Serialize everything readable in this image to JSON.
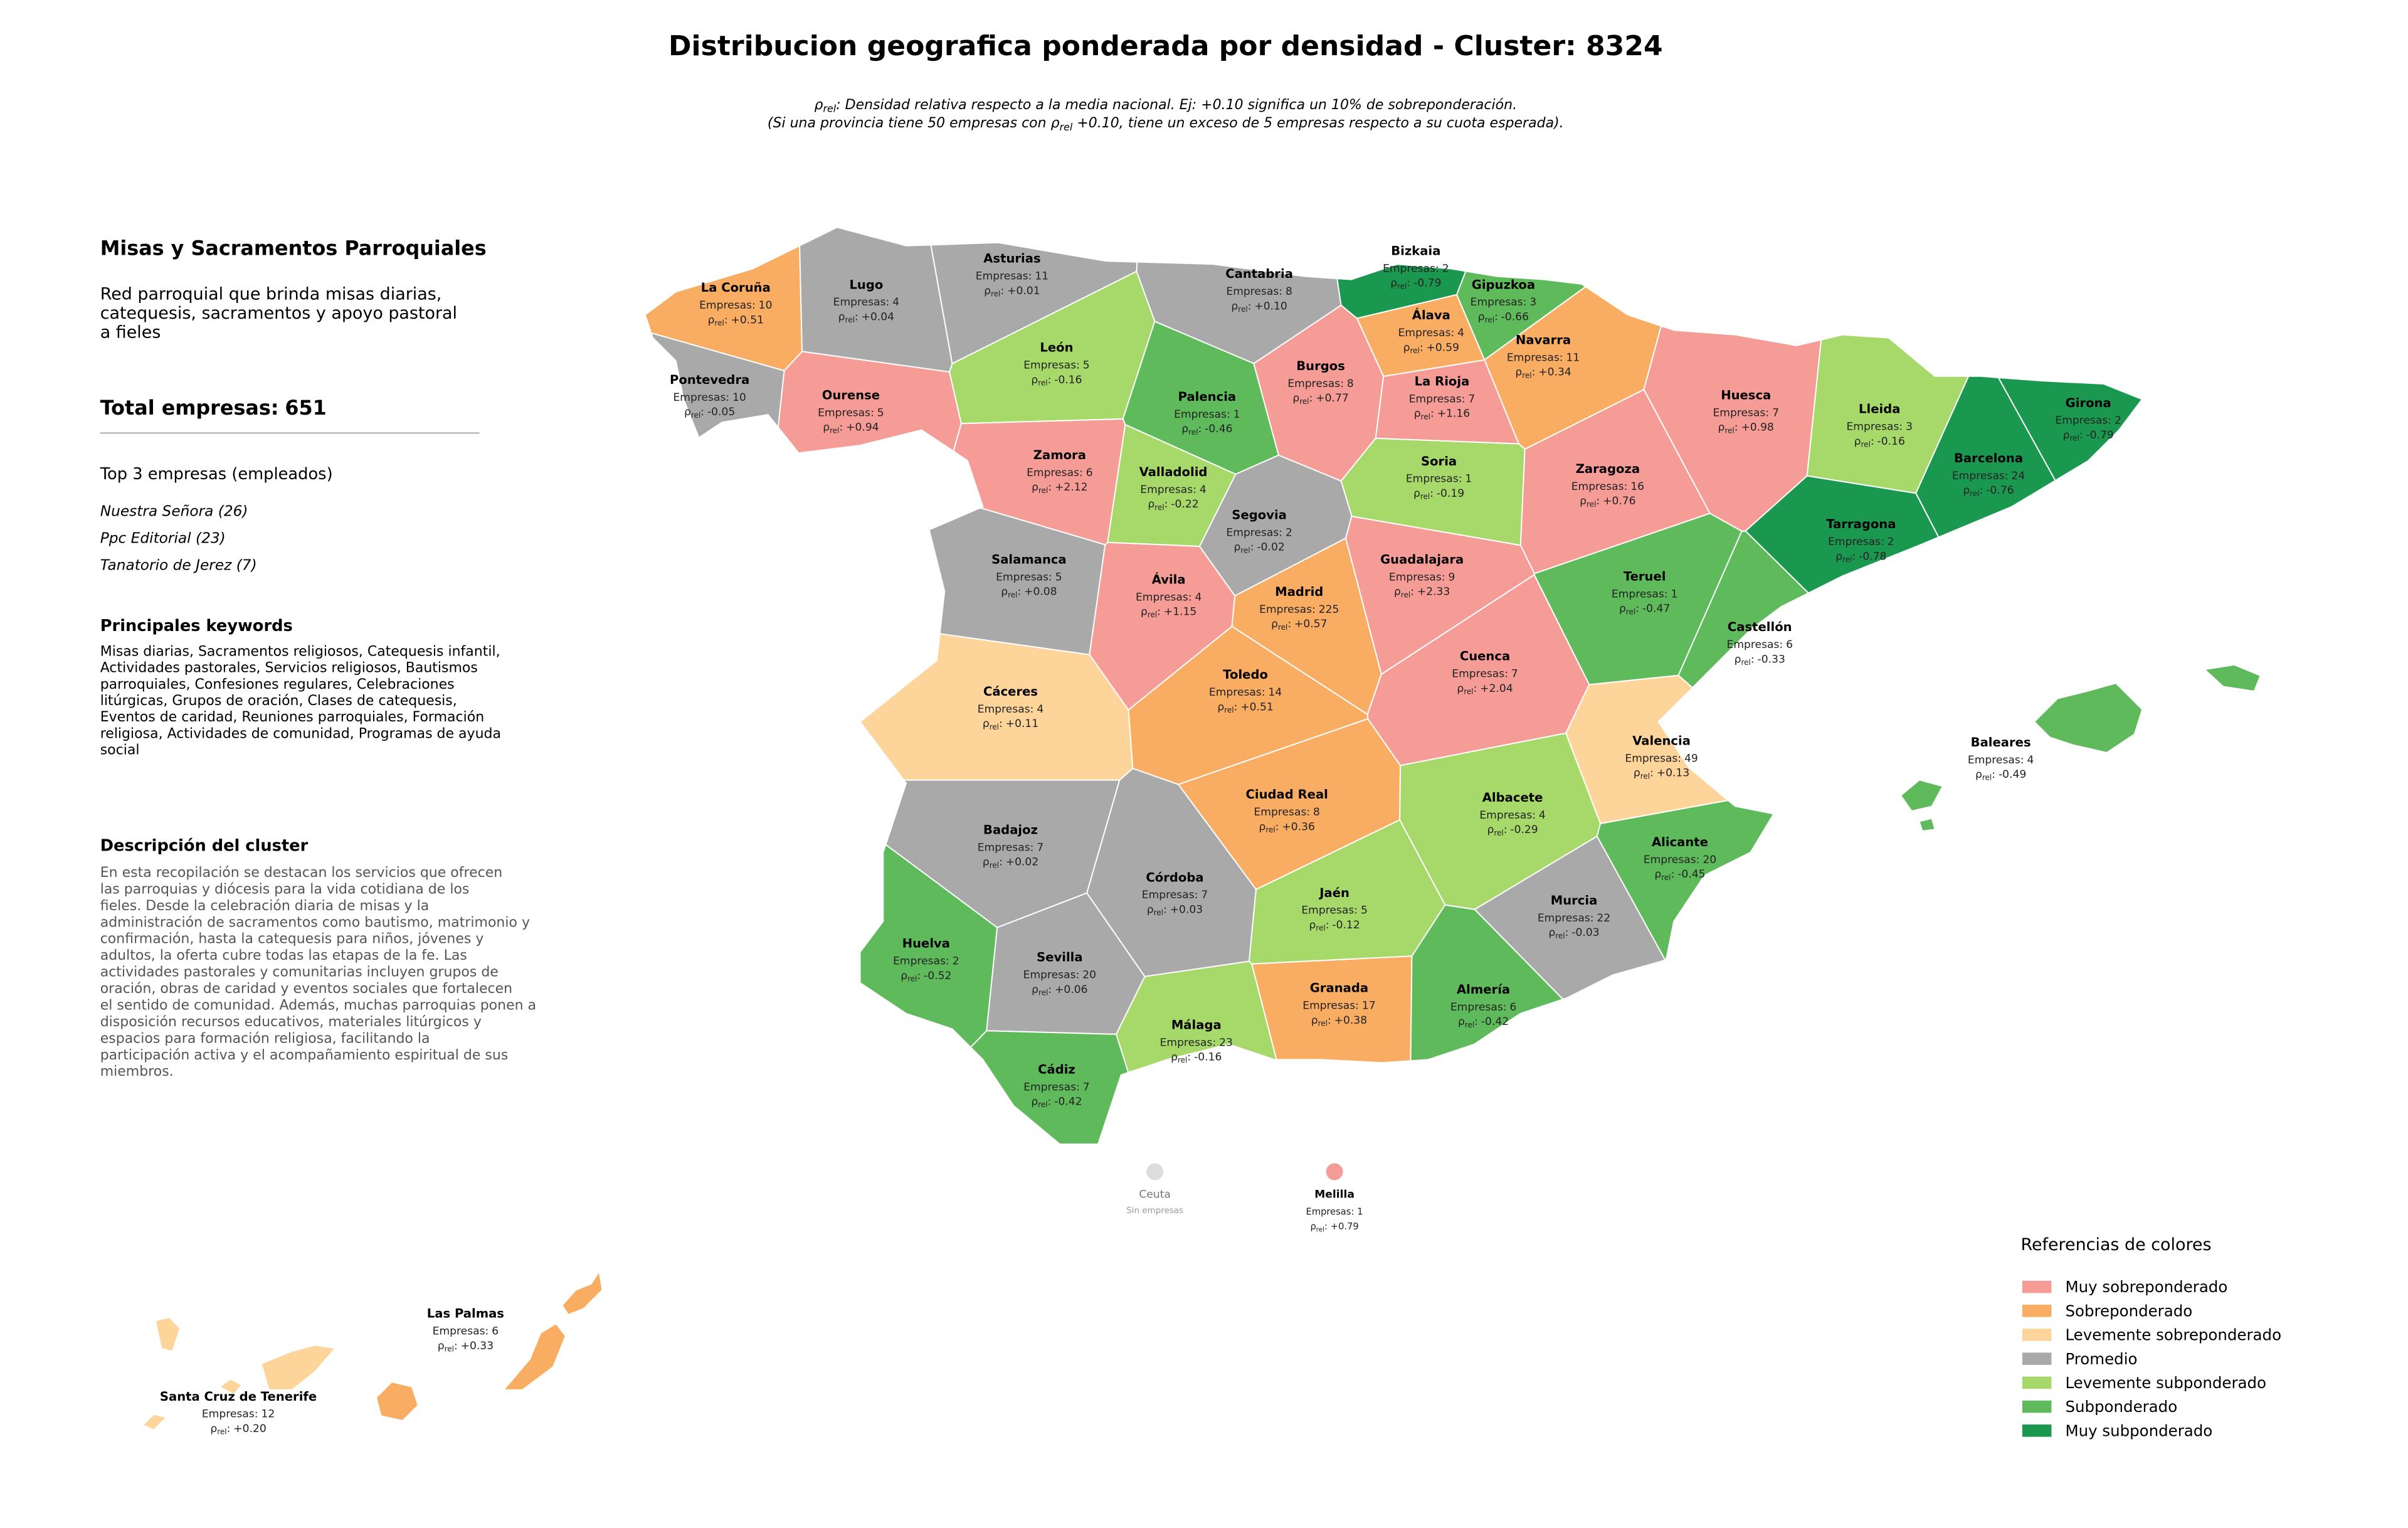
{
  "header": {
    "title": "Distribucion geografica ponderada por densidad - Cluster: 8324",
    "subtitle": [
      [
        {
          "text": "ρ"
        },
        {
          "text": "rel",
          "subscript": true
        },
        {
          "text": ": Densidad relativa respecto a la media nacional. Ej: +0.10 significa un 10% de sobreponderación."
        }
      ],
      [
        {
          "text": "(Si una provincia tiene 50 empresas con "
        },
        {
          "text": "ρ"
        },
        {
          "text": "rel",
          "subscript": true
        },
        {
          "text": " +0.10, tiene un exceso de 5 empresas respecto a su cuota esperada)."
        }
      ]
    ]
  },
  "sidebar": {
    "heading": "Misas y Sacramentos Parroquiales",
    "description": [
      "Red parroquial que brinda misas diarias,",
      "catequesis, sacramentos y apoyo pastoral",
      "a fieles"
    ],
    "total_label": "Total empresas:",
    "total": 651,
    "top_title": "Top 3 empresas (empleados)",
    "top": [
      "Nuestra Señora (26)",
      "Ppc Editorial (23)",
      "Tanatorio de Jerez (7)"
    ],
    "keywords_title": "Principales keywords",
    "keywords": [
      "Misas diarias, Sacramentos religiosos, Catequesis infantil,",
      "Actividades pastorales, Servicios religiosos, Bautismos",
      "parroquiales, Confesiones regulares, Celebraciones",
      "litúrgicas, Grupos de oración, Clases de catequesis,",
      "Eventos de caridad, Reuniones parroquiales, Formación",
      "religiosa, Actividades de comunidad, Programas de ayuda",
      "social"
    ],
    "cluster_title": "Descripción del cluster",
    "cluster_text": [
      "En esta recopilación se destacan los servicios que ofrecen",
      "las parroquias y diócesis para la vida cotidiana de los",
      "fieles. Desde la celebración diaria de misas y la",
      "administración de sacramentos como bautismo, matrimonio y",
      "confirmación, hasta la catequesis para niños, jóvenes y",
      "adultos, la oferta cubre todas las etapas de la fe. Las",
      "actividades pastorales y comunitarias incluyen grupos de",
      "oración, obras de caridad y eventos sociales que fortalecen",
      "el sentido de comunidad. Además, muchas parroquias ponen a",
      "disposición recursos educativos, materiales litúrgicos y",
      "espacios para formación religiosa, facilitando la",
      "participación activa y el acompañamiento espiritual de sus",
      "miembros."
    ]
  },
  "map": {
    "empresas_label": "Empresas:",
    "rho_label": {
      "symbol": "ρ",
      "subscript": "rel",
      "suffix": ":"
    },
    "provinces": [
      {
        "name": "La Coruña",
        "empresas": 10,
        "rho": 0.51,
        "rho_text": "+0.51",
        "color": "#f9ad62"
      },
      {
        "name": "Lugo",
        "empresas": 4,
        "rho": 0.04,
        "rho_text": "+0.04",
        "color": "#a9a9a9"
      },
      {
        "name": "Asturias",
        "empresas": 11,
        "rho": 0.01,
        "rho_text": "+0.01",
        "color": "#a9a9a9"
      },
      {
        "name": "Cantabria",
        "empresas": 8,
        "rho": 0.1,
        "rho_text": "+0.10",
        "color": "#a9a9a9"
      },
      {
        "name": "Bizkaia",
        "empresas": 2,
        "rho": -0.79,
        "rho_text": "-0.79",
        "color": "#1a9850"
      },
      {
        "name": "Gipuzkoa",
        "empresas": 3,
        "rho": -0.66,
        "rho_text": "-0.66",
        "color": "#5fba5c"
      },
      {
        "name": "Álava",
        "empresas": 4,
        "rho": 0.59,
        "rho_text": "+0.59",
        "color": "#f9ad62"
      },
      {
        "name": "Navarra",
        "empresas": 11,
        "rho": 0.34,
        "rho_text": "+0.34",
        "color": "#f9ad62"
      },
      {
        "name": "Pontevedra",
        "empresas": 10,
        "rho": -0.05,
        "rho_text": "-0.05",
        "color": "#a9a9a9"
      },
      {
        "name": "Ourense",
        "empresas": 5,
        "rho": 0.94,
        "rho_text": "+0.94",
        "color": "#f69c96"
      },
      {
        "name": "León",
        "empresas": 5,
        "rho": -0.16,
        "rho_text": "-0.16",
        "color": "#a6d96a"
      },
      {
        "name": "Palencia",
        "empresas": 1,
        "rho": -0.46,
        "rho_text": "-0.46",
        "color": "#5fba5c"
      },
      {
        "name": "Burgos",
        "empresas": 8,
        "rho": 0.77,
        "rho_text": "+0.77",
        "color": "#f69c96"
      },
      {
        "name": "La Rioja",
        "empresas": 7,
        "rho": 1.16,
        "rho_text": "+1.16",
        "color": "#f69c96"
      },
      {
        "name": "Huesca",
        "empresas": 7,
        "rho": 0.98,
        "rho_text": "+0.98",
        "color": "#f69c96"
      },
      {
        "name": "Lleida",
        "empresas": 3,
        "rho": -0.16,
        "rho_text": "-0.16",
        "color": "#a6d96a"
      },
      {
        "name": "Girona",
        "empresas": 2,
        "rho": -0.79,
        "rho_text": "-0.79",
        "color": "#1a9850"
      },
      {
        "name": "Barcelona",
        "empresas": 24,
        "rho": -0.76,
        "rho_text": "-0.76",
        "color": "#1a9850"
      },
      {
        "name": "Zamora",
        "empresas": 6,
        "rho": 2.12,
        "rho_text": "+2.12",
        "color": "#f69c96"
      },
      {
        "name": "Valladolid",
        "empresas": 4,
        "rho": -0.22,
        "rho_text": "-0.22",
        "color": "#a6d96a"
      },
      {
        "name": "Soria",
        "empresas": 1,
        "rho": -0.19,
        "rho_text": "-0.19",
        "color": "#a6d96a"
      },
      {
        "name": "Zaragoza",
        "empresas": 16,
        "rho": 0.76,
        "rho_text": "+0.76",
        "color": "#f69c96"
      },
      {
        "name": "Tarragona",
        "empresas": 2,
        "rho": -0.78,
        "rho_text": "-0.78",
        "color": "#1a9850"
      },
      {
        "name": "Segovia",
        "empresas": 2,
        "rho": -0.02,
        "rho_text": "-0.02",
        "color": "#a9a9a9"
      },
      {
        "name": "Salamanca",
        "empresas": 5,
        "rho": 0.08,
        "rho_text": "+0.08",
        "color": "#a9a9a9"
      },
      {
        "name": "Guadalajara",
        "empresas": 9,
        "rho": 2.33,
        "rho_text": "+2.33",
        "color": "#f69c96"
      },
      {
        "name": "Teruel",
        "empresas": 1,
        "rho": -0.47,
        "rho_text": "-0.47",
        "color": "#5fba5c"
      },
      {
        "name": "Ávila",
        "empresas": 4,
        "rho": 1.15,
        "rho_text": "+1.15",
        "color": "#f69c96"
      },
      {
        "name": "Madrid",
        "empresas": 225,
        "rho": 0.57,
        "rho_text": "+0.57",
        "color": "#f9ad62"
      },
      {
        "name": "Castellón",
        "empresas": 6,
        "rho": -0.33,
        "rho_text": "-0.33",
        "color": "#5fba5c"
      },
      {
        "name": "Cáceres",
        "empresas": 4,
        "rho": 0.11,
        "rho_text": "+0.11",
        "color": "#fdd49a"
      },
      {
        "name": "Toledo",
        "empresas": 14,
        "rho": 0.51,
        "rho_text": "+0.51",
        "color": "#f9ad62"
      },
      {
        "name": "Cuenca",
        "empresas": 7,
        "rho": 2.04,
        "rho_text": "+2.04",
        "color": "#f69c96"
      },
      {
        "name": "Valencia",
        "empresas": 49,
        "rho": 0.13,
        "rho_text": "+0.13",
        "color": "#fdd49a"
      },
      {
        "name": "Baleares",
        "empresas": 4,
        "rho": -0.49,
        "rho_text": "-0.49",
        "color": "#5fba5c"
      },
      {
        "name": "Badajoz",
        "empresas": 7,
        "rho": 0.02,
        "rho_text": "+0.02",
        "color": "#a9a9a9"
      },
      {
        "name": "Ciudad Real",
        "empresas": 8,
        "rho": 0.36,
        "rho_text": "+0.36",
        "color": "#f9ad62"
      },
      {
        "name": "Albacete",
        "empresas": 4,
        "rho": -0.29,
        "rho_text": "-0.29",
        "color": "#a6d96a"
      },
      {
        "name": "Alicante",
        "empresas": 20,
        "rho": -0.45,
        "rho_text": "-0.45",
        "color": "#5fba5c"
      },
      {
        "name": "Córdoba",
        "empresas": 7,
        "rho": 0.03,
        "rho_text": "+0.03",
        "color": "#a9a9a9"
      },
      {
        "name": "Murcia",
        "empresas": 22,
        "rho": -0.03,
        "rho_text": "-0.03",
        "color": "#a9a9a9"
      },
      {
        "name": "Jaén",
        "empresas": 5,
        "rho": -0.12,
        "rho_text": "-0.12",
        "color": "#a6d96a"
      },
      {
        "name": "Huelva",
        "empresas": 2,
        "rho": -0.52,
        "rho_text": "-0.52",
        "color": "#5fba5c"
      },
      {
        "name": "Sevilla",
        "empresas": 20,
        "rho": 0.06,
        "rho_text": "+0.06",
        "color": "#a9a9a9"
      },
      {
        "name": "Granada",
        "empresas": 17,
        "rho": 0.38,
        "rho_text": "+0.38",
        "color": "#f9ad62"
      },
      {
        "name": "Almería",
        "empresas": 6,
        "rho": -0.42,
        "rho_text": "-0.42",
        "color": "#5fba5c"
      },
      {
        "name": "Málaga",
        "empresas": 23,
        "rho": -0.16,
        "rho_text": "-0.16",
        "color": "#a6d96a"
      },
      {
        "name": "Cádiz",
        "empresas": 7,
        "rho": -0.42,
        "rho_text": "-0.42",
        "color": "#5fba5c"
      },
      {
        "name": "Santa Cruz de Tenerife",
        "empresas": 12,
        "rho": 0.2,
        "rho_text": "+0.20",
        "color": "#fdd49a"
      },
      {
        "name": "Las Palmas",
        "empresas": 6,
        "rho": 0.33,
        "rho_text": "+0.33",
        "color": "#f9ad62"
      },
      {
        "name": "Ceuta",
        "note": "Sin empresas",
        "color": "#dddddd"
      },
      {
        "name": "Melilla",
        "empresas": 1,
        "rho": 0.79,
        "rho_text": "+0.79",
        "color": "#f69c96"
      }
    ]
  },
  "legend": {
    "title": "Referencias de colores",
    "items": [
      {
        "name": "Muy sobreponderado",
        "color": "#f69c96"
      },
      {
        "name": "Sobreponderado",
        "color": "#f9ad62"
      },
      {
        "name": "Levemente sobreponderado",
        "color": "#fdd49a"
      },
      {
        "name": "Promedio",
        "color": "#a9a9a9"
      },
      {
        "name": "Levemente subponderado",
        "color": "#a6d96a"
      },
      {
        "name": "Subponderado",
        "color": "#5fba5c"
      },
      {
        "name": "Muy subponderado",
        "color": "#1a9850"
      }
    ]
  }
}
